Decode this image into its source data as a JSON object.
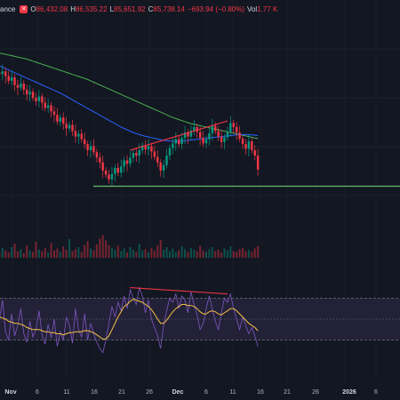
{
  "legend": {
    "symbol": "ance",
    "open_key": "O",
    "open": "86,432.08",
    "high_key": "H",
    "high": "86,535.22",
    "low_key": "L",
    "low": "85,651.92",
    "close_key": "C",
    "close": "85,738.14",
    "change": "−693.94 (−0.80%)",
    "vol_key": "Vol",
    "vol": "1.77 K"
  },
  "colors": {
    "background": "#131722",
    "up": "#089981",
    "down": "#f23645",
    "ma_fast": "#2962ff",
    "ma_slow": "#4caf50",
    "support": "#66bb6a",
    "trendline": "#f23645",
    "rsi_line": "#7e57c2",
    "rsi_ma": "#f6c244",
    "rsi_band": "#2a2540"
  },
  "chart_data": [
    {
      "type": "candlestick",
      "x_ticks": [
        "Nov",
        "6",
        "11",
        "16",
        "21",
        "26",
        "Dec",
        "6",
        "11",
        "16",
        "21",
        "26",
        "2026",
        "6"
      ],
      "x_tick_bold": [
        "Nov",
        "Dec",
        "2026"
      ],
      "close": [
        100000,
        99800,
        100200,
        99500,
        98800,
        99300,
        98200,
        97800,
        98400,
        97500,
        96800,
        97200,
        96300,
        95800,
        96500,
        95600,
        94800,
        95200,
        94300,
        93800,
        92800,
        93400,
        92500,
        91800,
        92300,
        91400,
        90600,
        91000,
        90200,
        89500,
        88600,
        89200,
        88300,
        87500,
        86800,
        85600,
        85000,
        84300,
        85100,
        86000,
        85300,
        86200,
        87100,
        86600,
        87500,
        88200,
        87800,
        88600,
        89300,
        88700,
        89200,
        88400,
        87600,
        86800,
        85600,
        86400,
        87800,
        88900,
        89600,
        90200,
        89500,
        90400,
        91200,
        90600,
        91500,
        92000,
        91300,
        90400,
        89600,
        90200,
        91100,
        92200,
        91400,
        90600,
        89800,
        90500,
        91300,
        92600,
        92000,
        91200,
        90300,
        89500,
        88800,
        89900,
        88600,
        87800,
        85738
      ],
      "ma_fast": [
        101200,
        101000,
        100800,
        100600,
        100400,
        100200,
        100000,
        99800,
        99600,
        99400,
        99200,
        99000,
        98800,
        98600,
        98400,
        98200,
        98000,
        97800,
        97600,
        97400,
        97200,
        97000,
        96750,
        96500,
        96250,
        96000,
        95750,
        95500,
        95250,
        95000,
        94750,
        94500,
        94250,
        94000,
        93750,
        93500,
        93250,
        93000,
        92750,
        92500,
        92250,
        92000,
        91800,
        91600,
        91400,
        91200,
        91050,
        90900,
        90750,
        90650,
        90550,
        90450,
        90350,
        90250,
        90150,
        90050,
        90000,
        89950,
        89900,
        89900,
        89900,
        89950,
        90000,
        90050,
        90100,
        90150,
        90200,
        90250,
        90300,
        90350,
        90400,
        90450,
        90500,
        90550,
        90600,
        90650,
        90700,
        90750,
        90800,
        90850,
        90900,
        90900,
        90900,
        90880,
        90850,
        90800,
        90750
      ],
      "ma_slow": [
        103000,
        102900,
        102800,
        102700,
        102600,
        102500,
        102400,
        102300,
        102200,
        102100,
        102000,
        101850,
        101700,
        101550,
        101400,
        101250,
        101100,
        100950,
        100800,
        100650,
        100500,
        100350,
        100200,
        100050,
        99900,
        99750,
        99600,
        99450,
        99300,
        99150,
        99000,
        98800,
        98600,
        98400,
        98200,
        98000,
        97800,
        97600,
        97400,
        97200,
        97000,
        96800,
        96600,
        96400,
        96200,
        96000,
        95800,
        95600,
        95400,
        95200,
        95000,
        94800,
        94600,
        94400,
        94200,
        94000,
        93800,
        93600,
        93400,
        93250,
        93100,
        92950,
        92800,
        92650,
        92500,
        92400,
        92300,
        92200,
        92100,
        92000,
        91900,
        91800,
        91700,
        91600,
        91500,
        91400,
        91300,
        91200,
        91100,
        91000,
        90900,
        90800,
        90700,
        90600,
        90500,
        90400,
        90300
      ],
      "support_level": 83300,
      "trendline": {
        "from_index": 44,
        "to_index": 76,
        "from_price": 88600,
        "to_price": 92900
      },
      "volume": [
        1.2,
        0.9,
        1.5,
        1.1,
        0.8,
        1.6,
        2.1,
        1.0,
        1.3,
        0.7,
        1.8,
        1.1,
        0.9,
        2.4,
        1.2,
        1.0,
        1.5,
        0.8,
        2.2,
        1.1,
        1.4,
        0.9,
        1.7,
        1.2,
        2.8,
        1.0,
        1.3,
        1.6,
        0.9,
        1.9,
        2.5,
        1.4,
        1.1,
        2.0,
        2.9,
        3.4,
        2.6,
        1.9,
        1.5,
        1.2,
        1.8,
        1.0,
        1.4,
        0.8,
        1.6,
        1.2,
        0.9,
        2.1,
        1.1,
        1.3,
        0.8,
        1.5,
        1.0,
        1.9,
        2.7,
        1.2,
        1.6,
        1.0,
        1.4,
        0.9,
        1.1,
        1.7,
        1.3,
        0.9,
        1.5,
        1.2,
        1.0,
        1.8,
        1.1,
        0.9,
        1.3,
        1.6,
        1.0,
        1.2,
        0.8,
        1.4,
        1.1,
        1.7,
        1.0,
        0.9,
        1.3,
        1.5,
        1.0,
        1.2,
        0.9,
        1.4,
        1.77
      ]
    },
    {
      "type": "line",
      "indicator": "RSI",
      "ylim": [
        0,
        100
      ],
      "upper_band": 70,
      "lower_band": 30,
      "rsi": [
        62,
        50,
        68,
        38,
        30,
        55,
        34,
        44,
        60,
        36,
        28,
        48,
        33,
        40,
        58,
        35,
        26,
        45,
        32,
        50,
        24,
        38,
        30,
        52,
        44,
        27,
        60,
        40,
        33,
        55,
        30,
        46,
        36,
        28,
        22,
        18,
        30,
        46,
        62,
        52,
        66,
        58,
        72,
        60,
        78,
        70,
        64,
        80,
        72,
        56,
        68,
        50,
        42,
        34,
        22,
        44,
        58,
        70,
        66,
        74,
        60,
        72,
        68,
        56,
        76,
        64,
        54,
        40,
        46,
        60,
        72,
        60,
        48,
        40,
        56,
        70,
        66,
        74,
        60,
        50,
        40,
        52,
        44,
        36,
        42,
        34,
        24
      ],
      "rsi_ma": [
        52,
        52,
        51,
        50,
        48,
        47,
        46,
        46,
        45,
        44,
        42,
        41,
        40,
        40,
        40,
        39,
        38,
        38,
        37,
        37,
        36,
        36,
        35,
        36,
        37,
        37,
        38,
        38,
        38,
        39,
        39,
        38,
        37,
        35,
        33,
        31,
        31,
        34,
        40,
        46,
        52,
        57,
        62,
        64,
        67,
        69,
        68,
        67,
        66,
        64,
        62,
        59,
        55,
        50,
        46,
        46,
        49,
        53,
        57,
        60,
        62,
        64,
        64,
        63,
        63,
        62,
        60,
        57,
        55,
        55,
        57,
        58,
        57,
        55,
        54,
        56,
        58,
        60,
        60,
        58,
        55,
        52,
        49,
        46,
        44,
        42,
        39
      ],
      "divergence_line": {
        "from_index": 44,
        "to_index": 76,
        "from_value": 80,
        "to_value": 74
      }
    }
  ]
}
